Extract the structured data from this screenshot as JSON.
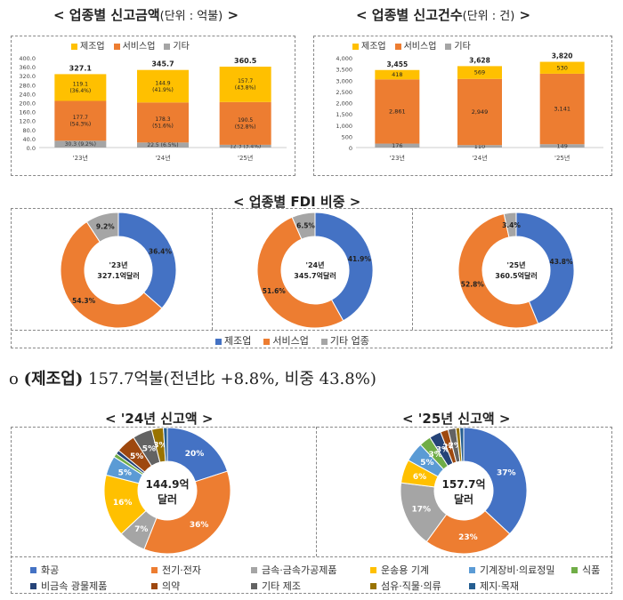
{
  "titles": {
    "amount_title": "< 업종별 신고금액",
    "amount_unit": "(단위 : 억불)",
    "amount_close": ">",
    "count_title": "< 업종별 신고건수",
    "count_unit": "(단위 : 건)",
    "count_close": ">",
    "fdi_title": "< 업종별 FDI 비중 >",
    "m24_title": "< '24년 신고액 >",
    "m25_title": "< '25년 신고액 >"
  },
  "headline": {
    "bullet": "o",
    "label": "(제조업)",
    "text": "157.7억불(전년比 +8.8%, 비중 43.8%)"
  },
  "colors": {
    "manufacturing": "#ffc000",
    "service": "#ed7d31",
    "other": "#a5a5a5",
    "blue": "#4472c4"
  },
  "chart_data": [
    {
      "type": "bar",
      "stacked": true,
      "title": "업종별 신고금액",
      "unit": "단위 : 억불",
      "categories": [
        "'23년",
        "'24년",
        "'25년"
      ],
      "yticks": [
        "400.0",
        "360.0",
        "320.0",
        "280.0",
        "240.0",
        "200.0",
        "160.0",
        "120.0",
        "80.0",
        "40.0",
        "0.0"
      ],
      "ylim": [
        0,
        400
      ],
      "legend": [
        "제조업",
        "서비스업",
        "기타"
      ],
      "totals": [
        327.1,
        345.7,
        360.5
      ],
      "total_labels": [
        "327.1",
        "345.7",
        "360.5"
      ],
      "series": [
        {
          "name": "기타",
          "values": [
            30.3,
            22.5,
            12.3
          ],
          "labels": [
            "30.3 (9.2%)",
            "22.5 (6.5%)",
            "12.3 (3.4%)"
          ]
        },
        {
          "name": "서비스업",
          "values": [
            177.7,
            178.3,
            190.5
          ],
          "labels": [
            "177.7\n(54.3%)",
            "178.3\n(51.6%)",
            "190.5\n(52.8%)"
          ]
        },
        {
          "name": "제조업",
          "values": [
            119.1,
            144.9,
            157.7
          ],
          "labels": [
            "119.1\n(36.4%)",
            "144.9\n(41.9%)",
            "157.7\n(43.8%)"
          ]
        }
      ]
    },
    {
      "type": "bar",
      "stacked": true,
      "title": "업종별 신고건수",
      "unit": "단위 : 건",
      "categories": [
        "'23년",
        "'24년",
        "'25년"
      ],
      "yticks": [
        "4,000",
        "3,500",
        "3,000",
        "2,500",
        "2,000",
        "1,500",
        "1,000",
        "500",
        "0"
      ],
      "ylim": [
        0,
        4000
      ],
      "legend": [
        "제조업",
        "서비스업",
        "기타"
      ],
      "totals": [
        3455,
        3628,
        3820
      ],
      "total_labels": [
        "3,455",
        "3,628",
        "3,820"
      ],
      "series": [
        {
          "name": "기타",
          "values": [
            176,
            110,
            149
          ],
          "labels": [
            "176",
            "110",
            "149"
          ]
        },
        {
          "name": "서비스업",
          "values": [
            2861,
            2949,
            3141
          ],
          "labels": [
            "2,861",
            "2,949",
            "3,141"
          ]
        },
        {
          "name": "제조업",
          "values": [
            418,
            569,
            530
          ],
          "labels": [
            "418",
            "569",
            "530"
          ]
        }
      ]
    },
    {
      "type": "pie",
      "donut": true,
      "title": "업종별 FDI 비중",
      "legend": [
        "제조업",
        "서비스업",
        "기타 업종"
      ],
      "charts": [
        {
          "center_year": "'23년",
          "center_value": "327.1억달러",
          "values": [
            36.4,
            54.3,
            9.2
          ],
          "labels": [
            "36.4%",
            "54.3%",
            "9.2%"
          ]
        },
        {
          "center_year": "'24년",
          "center_value": "345.7억달러",
          "values": [
            41.9,
            51.6,
            6.5
          ],
          "labels": [
            "41.9%",
            "51.6%",
            "6.5%"
          ]
        },
        {
          "center_year": "'25년",
          "center_value": "360.5억달러",
          "values": [
            43.8,
            52.8,
            3.4
          ],
          "labels": [
            "43.8%",
            "52.8%",
            "3.4%"
          ]
        }
      ]
    },
    {
      "type": "pie",
      "donut": true,
      "title": "'24년 신고액",
      "center": [
        "144.9억",
        "달러"
      ],
      "slices": [
        {
          "name": "화공",
          "value": 20,
          "label": "20%"
        },
        {
          "name": "전기·전자",
          "value": 36,
          "label": "36%"
        },
        {
          "name": "금속·금속가공제품",
          "value": 7,
          "label": "7%"
        },
        {
          "name": "운송용 기계",
          "value": 16,
          "label": "16%"
        },
        {
          "name": "기계장비·의료정밀",
          "value": 5,
          "label": "5%"
        },
        {
          "name": "식품",
          "value": 1,
          "label": ""
        },
        {
          "name": "비금속 광물제품",
          "value": 1,
          "label": ""
        },
        {
          "name": "의약",
          "value": 5,
          "label": "5%"
        },
        {
          "name": "기타 제조",
          "value": 5,
          "label": "5%"
        },
        {
          "name": "섬유·직물·의류",
          "value": 3,
          "label": "3%"
        },
        {
          "name": "제지·목재",
          "value": 1,
          "label": ""
        }
      ]
    },
    {
      "type": "pie",
      "donut": true,
      "title": "'25년 신고액",
      "center": [
        "157.7억",
        "달러"
      ],
      "slices": [
        {
          "name": "화공",
          "value": 37,
          "label": "37%"
        },
        {
          "name": "전기·전자",
          "value": 23,
          "label": "23%"
        },
        {
          "name": "금속·금속가공제품",
          "value": 17,
          "label": "17%"
        },
        {
          "name": "운송용 기계",
          "value": 6,
          "label": "6%"
        },
        {
          "name": "기계장비·의료정밀",
          "value": 5,
          "label": "5%"
        },
        {
          "name": "식품",
          "value": 3,
          "label": "3%"
        },
        {
          "name": "비금속 광물제품",
          "value": 3,
          "label": "3%"
        },
        {
          "name": "의약",
          "value": 2,
          "label": "2%"
        },
        {
          "name": "기타 제조",
          "value": 2,
          "label": "2%"
        },
        {
          "name": "섬유·직물·의류",
          "value": 1,
          "label": ""
        },
        {
          "name": "제지·목재",
          "value": 1,
          "label": ""
        }
      ]
    }
  ],
  "mfg_legend": [
    {
      "name": "화공",
      "color": "#4472c4"
    },
    {
      "name": "전기·전자",
      "color": "#ed7d31"
    },
    {
      "name": "금속·금속가공제품",
      "color": "#a5a5a5"
    },
    {
      "name": "운송용 기계",
      "color": "#ffc000"
    },
    {
      "name": "기계장비·의료정밀",
      "color": "#5b9bd5"
    },
    {
      "name": "식품",
      "color": "#70ad47"
    },
    {
      "name": "비금속 광물제품",
      "color": "#264478"
    },
    {
      "name": "의약",
      "color": "#9e480e"
    },
    {
      "name": "기타 제조",
      "color": "#636363"
    },
    {
      "name": "섬유·직물·의류",
      "color": "#997300"
    },
    {
      "name": "제지·목재",
      "color": "#255e91"
    }
  ]
}
